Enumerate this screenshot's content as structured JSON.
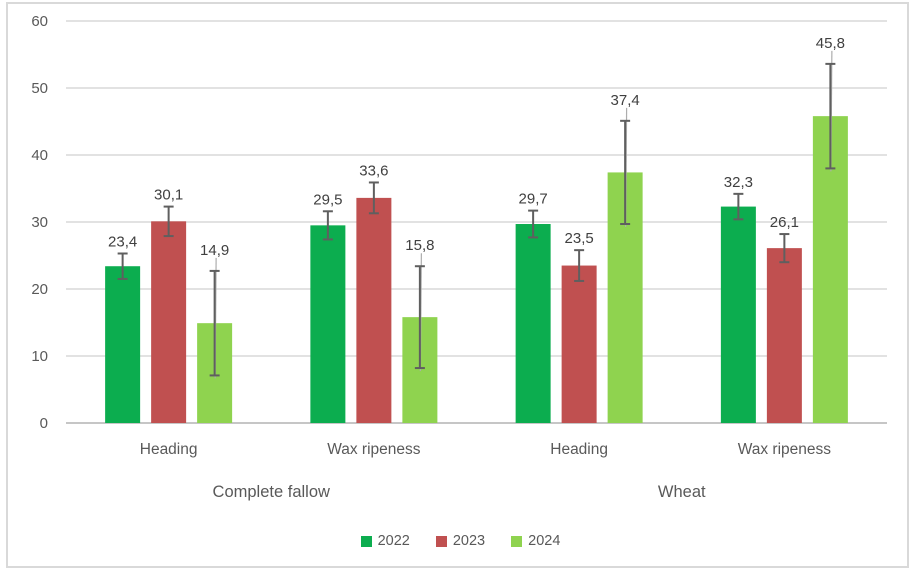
{
  "chart_data": {
    "type": "bar",
    "title": "",
    "y_axis": {
      "min": 0,
      "max": 60,
      "step": 10,
      "ticks": [
        "0",
        "10",
        "20",
        "30",
        "40",
        "50",
        "60"
      ]
    },
    "grid": true,
    "decimal_separator": ",",
    "groups": [
      {
        "label": "Complete fallow",
        "categories": [
          "Heading",
          "Wax ripeness"
        ]
      },
      {
        "label": "Wheat",
        "categories": [
          "Heading",
          "Wax ripeness"
        ]
      }
    ],
    "series": [
      {
        "name": "2022",
        "color": "#0CAD4F",
        "values": [
          23.4,
          29.5,
          29.7,
          32.3
        ],
        "labels": [
          "23,4",
          "29,5",
          "29,7",
          "32,3"
        ],
        "errors": [
          1.9,
          2.1,
          2.0,
          1.9
        ]
      },
      {
        "name": "2023",
        "color": "#C05050",
        "values": [
          30.1,
          33.6,
          23.5,
          26.1
        ],
        "labels": [
          "30,1",
          "33,6",
          "23,5",
          "26,1"
        ],
        "errors": [
          2.2,
          2.3,
          2.3,
          2.1
        ]
      },
      {
        "name": "2024",
        "color": "#8FD34F",
        "values": [
          14.9,
          15.8,
          37.4,
          45.8
        ],
        "labels": [
          "14,9",
          "15,8",
          "37,4",
          "45,8"
        ],
        "errors": [
          7.8,
          7.6,
          7.7,
          7.8
        ]
      }
    ],
    "legend": {
      "position": "bottom",
      "entries": [
        "2022",
        "2023",
        "2024"
      ]
    },
    "colors": {
      "gridline": "#D9D9D9",
      "axis_line": "#C6C6C6",
      "error_bar": "#5F5F5F",
      "error_bar_thin": "#ADADAD",
      "tick_label": "#595959",
      "data_label": "#404040",
      "category_label": "#595959",
      "group_label": "#595959",
      "frame_border": "#D9D9D9"
    }
  }
}
